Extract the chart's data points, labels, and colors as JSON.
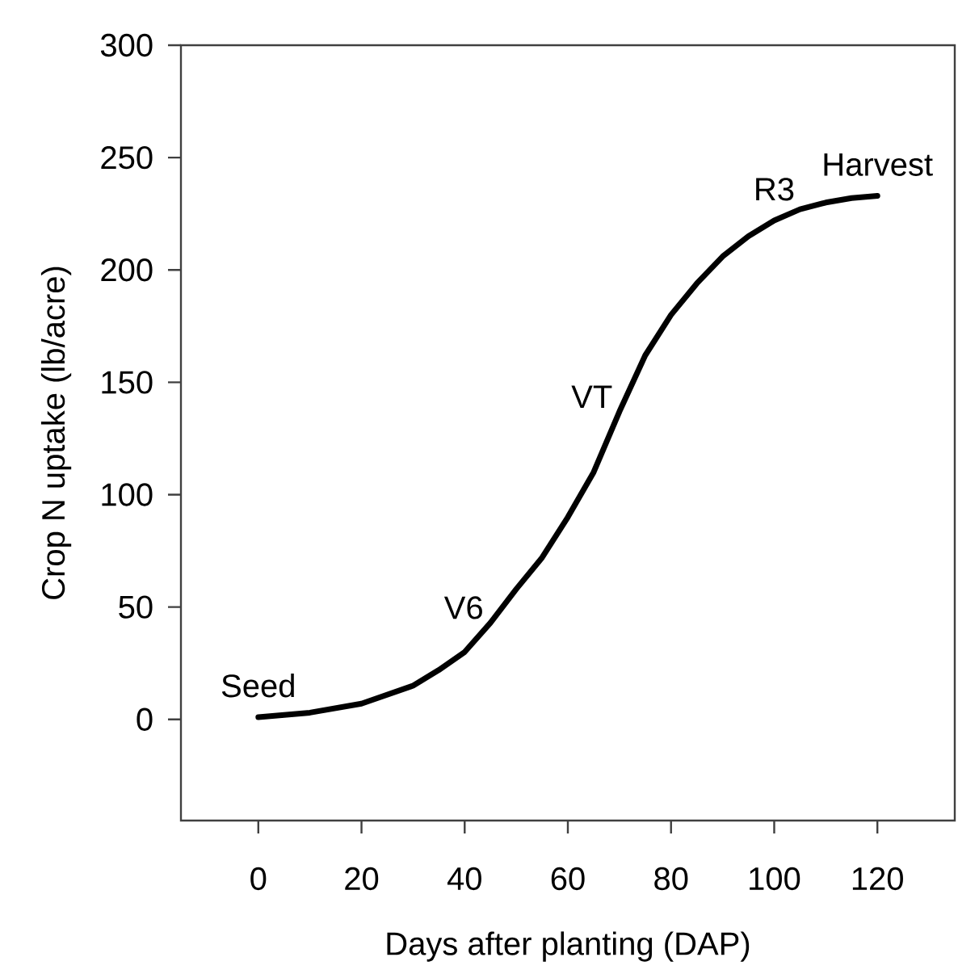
{
  "chart_data": {
    "type": "line",
    "xlabel": "Days after planting (DAP)",
    "ylabel": "Crop N uptake (lb/acre)",
    "xlim": [
      -15,
      135
    ],
    "ylim": [
      -45,
      300
    ],
    "xticks": [
      0,
      20,
      40,
      60,
      80,
      100,
      120
    ],
    "yticks": [
      0,
      50,
      100,
      150,
      200,
      250,
      300
    ],
    "grid": false,
    "marker": "none",
    "line_style": "solid",
    "series": [
      {
        "color": "#000000",
        "x": [
          0,
          10,
          20,
          30,
          35,
          40,
          45,
          50,
          55,
          60,
          65,
          70,
          75,
          80,
          85,
          90,
          95,
          100,
          105,
          110,
          115,
          120
        ],
        "values": [
          1,
          3,
          7,
          15,
          22,
          30,
          43,
          58,
          72,
          90,
          110,
          137,
          162,
          180,
          194,
          206,
          215,
          222,
          227,
          230,
          232,
          233
        ]
      }
    ],
    "annotations": [
      {
        "text": "Seed",
        "x": 0,
        "y": 1
      },
      {
        "text": "V6",
        "x": 45,
        "y": 43
      },
      {
        "text": "VT",
        "x": 70,
        "y": 137
      },
      {
        "text": "R3",
        "x": 100,
        "y": 222
      },
      {
        "text": "Harvest",
        "x": 120,
        "y": 233
      }
    ]
  }
}
